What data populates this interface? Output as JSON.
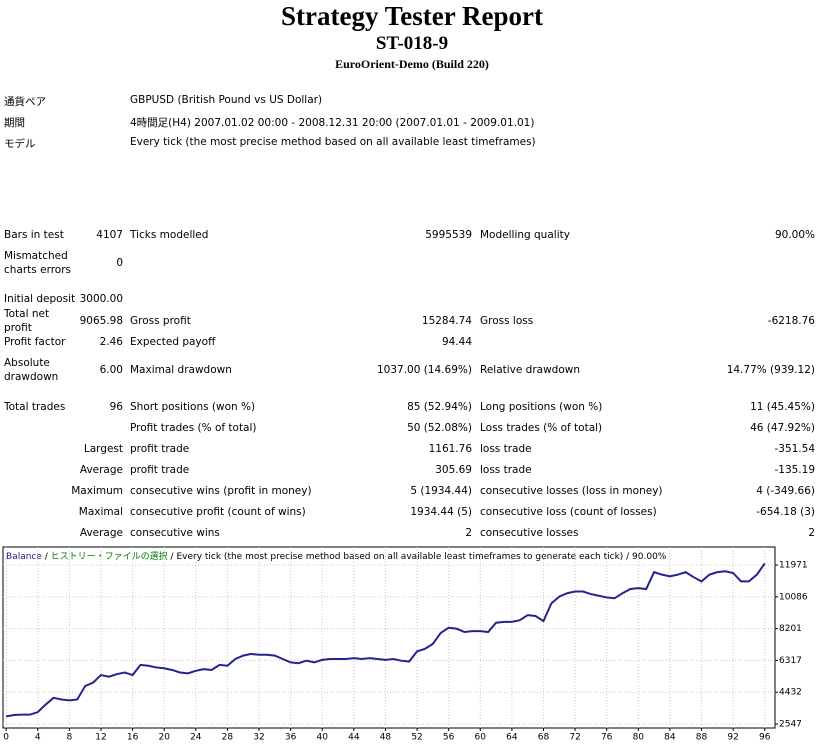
{
  "header": {
    "title": "Strategy Tester Report",
    "subtitle": "ST-018-9",
    "server": "EuroOrient-Demo (Build 220)"
  },
  "info": [
    {
      "label": "通貨ペア",
      "value": "GBPUSD (British Pound vs US Dollar)"
    },
    {
      "label": "期間",
      "value": "4時間足(H4) 2007.01.02 00:00 - 2008.12.31 20:00 (2007.01.01 - 2009.01.01)"
    },
    {
      "label": "モデル",
      "value": "Every tick (the most precise method based on all available least timeframes)"
    }
  ],
  "stats": [
    [
      "Bars in test",
      "4107",
      "Ticks modelled",
      "5995539",
      "Modelling quality",
      "90.00%"
    ],
    [
      "Mismatched charts errors",
      "0",
      null,
      null,
      null,
      null
    ],
    [
      "Initial deposit",
      "3000.00",
      null,
      null,
      null,
      null
    ],
    [
      "Total net profit",
      "9065.98",
      "Gross profit",
      "15284.74",
      "Gross loss",
      "-6218.76"
    ],
    [
      "Profit factor",
      "2.46",
      "Expected payoff",
      "94.44",
      null,
      null
    ],
    [
      "Absolute drawdown",
      "6.00",
      "Maximal drawdown",
      "1037.00 (14.69%)",
      "Relative drawdown",
      "14.77% (939.12)"
    ],
    [
      "Total trades",
      "96",
      "Short positions (won %)",
      "85 (52.94%)",
      "Long positions (won %)",
      "11 (45.45%)"
    ],
    [
      null,
      null,
      "Profit trades (% of total)",
      "50 (52.08%)",
      "Loss trades (% of total)",
      "46 (47.92%)"
    ],
    [
      null,
      "Largest",
      "profit trade",
      "1161.76",
      "loss trade",
      "-351.54"
    ],
    [
      null,
      "Average",
      "profit trade",
      "305.69",
      "loss trade",
      "-135.19"
    ],
    [
      null,
      "Maximum",
      "consecutive wins (profit in money)",
      "5 (1934.44)",
      "consecutive losses (loss in money)",
      "4 (-349.66)"
    ],
    [
      null,
      "Maximal",
      "consecutive profit (count of wins)",
      "1934.44 (5)",
      "consecutive loss (count of losses)",
      "-654.18 (3)"
    ],
    [
      null,
      "Average",
      "consecutive wins",
      "2",
      "consecutive losses",
      "2"
    ]
  ],
  "chart_data": {
    "type": "line",
    "header_parts": [
      {
        "text": "Balance",
        "color": "#1a1a8c"
      },
      {
        "text": " / ",
        "color": "#000000"
      },
      {
        "text": "ヒストリー・ファイルの選択",
        "color": "#008000"
      },
      {
        "text": " / Every tick (the most precise method based on all available least timeframes to generate each tick) / 90.00%",
        "color": "#000000"
      }
    ],
    "color": "#24248f",
    "grid": true,
    "x": [
      0,
      1,
      2,
      3,
      4,
      5,
      6,
      7,
      8,
      9,
      10,
      11,
      12,
      13,
      14,
      15,
      16,
      17,
      18,
      19,
      20,
      21,
      22,
      23,
      24,
      25,
      26,
      27,
      28,
      29,
      30,
      31,
      32,
      33,
      34,
      35,
      36,
      37,
      38,
      39,
      40,
      41,
      42,
      43,
      44,
      45,
      46,
      47,
      48,
      49,
      50,
      51,
      52,
      53,
      54,
      55,
      56,
      57,
      58,
      59,
      60,
      61,
      62,
      63,
      64,
      65,
      66,
      67,
      68,
      69,
      70,
      71,
      72,
      73,
      74,
      75,
      76,
      77,
      78,
      79,
      80,
      81,
      82,
      83,
      84,
      85,
      86,
      87,
      88,
      89,
      90,
      91,
      92,
      93,
      94,
      95,
      96
    ],
    "values": [
      3000,
      3080,
      3100,
      3100,
      3250,
      3700,
      4100,
      4000,
      3950,
      4000,
      4800,
      5000,
      5450,
      5350,
      5500,
      5600,
      5450,
      6050,
      6000,
      5900,
      5850,
      5750,
      5600,
      5550,
      5700,
      5800,
      5750,
      6050,
      6000,
      6400,
      6600,
      6700,
      6650,
      6650,
      6600,
      6400,
      6200,
      6150,
      6300,
      6200,
      6350,
      6400,
      6400,
      6400,
      6450,
      6400,
      6450,
      6400,
      6350,
      6400,
      6300,
      6250,
      6850,
      7000,
      7300,
      7950,
      8250,
      8200,
      8000,
      8050,
      8050,
      8000,
      8550,
      8600,
      8600,
      8700,
      9000,
      8950,
      8650,
      9700,
      10100,
      10300,
      10400,
      10400,
      10250,
      10150,
      10050,
      10000,
      10300,
      10550,
      10600,
      10550,
      11550,
      11400,
      11300,
      11400,
      11550,
      11250,
      11000,
      11400,
      11550,
      11600,
      11500,
      11000,
      11000,
      11400,
      12066
    ],
    "xlim": [
      -0.4,
      97.3
    ],
    "xticks": [
      0,
      4,
      8,
      12,
      16,
      20,
      24,
      28,
      32,
      36,
      40,
      44,
      48,
      52,
      56,
      60,
      64,
      68,
      72,
      76,
      80,
      84,
      88,
      92,
      96
    ],
    "ylim": [
      2310,
      13040
    ],
    "yticks": [
      2547,
      4432,
      6317,
      8201,
      10086,
      11971
    ]
  }
}
